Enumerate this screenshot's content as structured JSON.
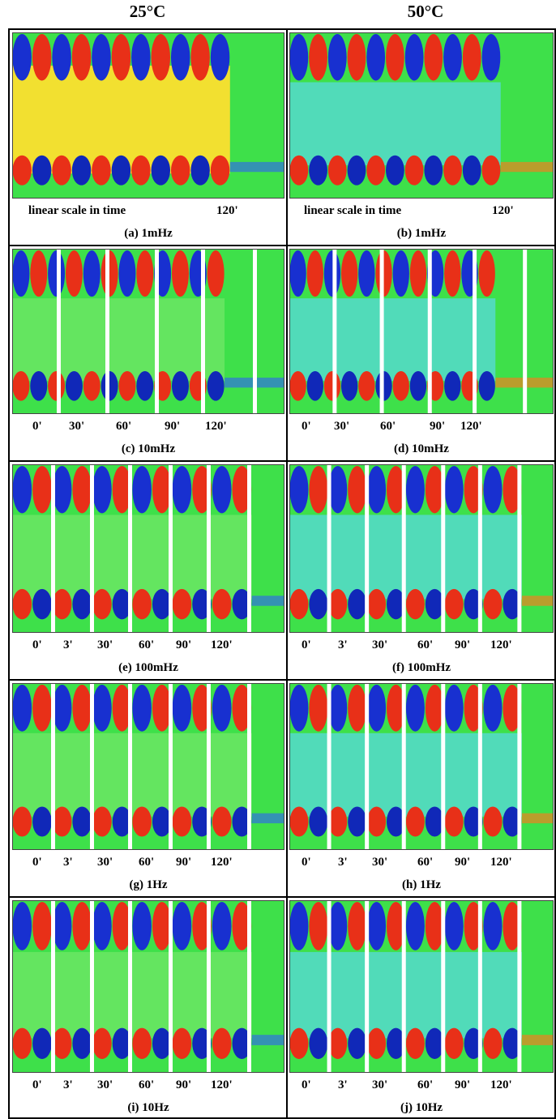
{
  "columns": [
    "25°C",
    "50°C"
  ],
  "panels": [
    {
      "labels": [
        "linear scale in time",
        "120'"
      ],
      "caption": "(a) 1mHz"
    },
    {
      "labels": [
        "linear scale in time",
        "120'"
      ],
      "caption": "(b) 1mHz"
    },
    {
      "labels": [
        "0'",
        "30'",
        "60'",
        "90'",
        "120'"
      ],
      "caption": "(c) 10mHz"
    },
    {
      "labels": [
        "0'",
        "30'",
        "60'",
        "90'",
        "120'"
      ],
      "caption": "(d) 10mHz"
    },
    {
      "labels": [
        "0'",
        "3'",
        "30'",
        "60'",
        "90'",
        "120'"
      ],
      "caption": "(e) 100mHz"
    },
    {
      "labels": [
        "0'",
        "3'",
        "30'",
        "60'",
        "90'",
        "120'"
      ],
      "caption": "(f) 100mHz"
    },
    {
      "labels": [
        "0'",
        "3'",
        "30'",
        "60'",
        "90'",
        "120'"
      ],
      "caption": "(g) 1Hz"
    },
    {
      "labels": [
        "0'",
        "3'",
        "30'",
        "60'",
        "90'",
        "120'"
      ],
      "caption": "(h) 1Hz"
    },
    {
      "labels": [
        "0'",
        "3'",
        "30'",
        "60'",
        "90'",
        "120'"
      ],
      "caption": "(i) 10Hz"
    },
    {
      "labels": [
        "0'",
        "3'",
        "30'",
        "60'",
        "90'",
        "120'"
      ],
      "caption": "(j) 10Hz"
    }
  ]
}
